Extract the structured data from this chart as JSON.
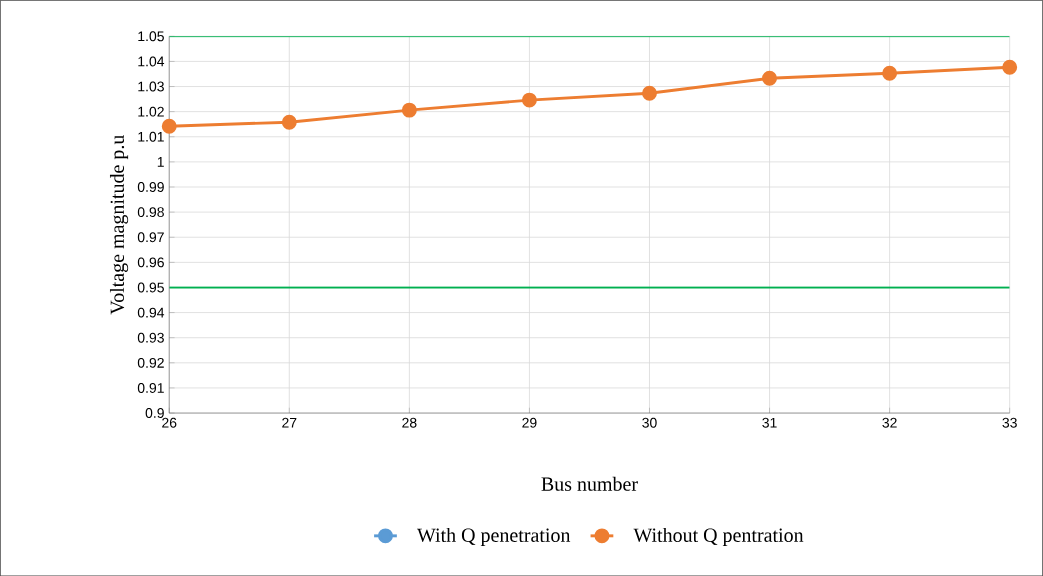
{
  "chart_data": {
    "type": "line",
    "xlabel": "Bus number",
    "ylabel": "Voltage magnitude p.u",
    "x": [
      26,
      27,
      28,
      29,
      30,
      31,
      32,
      33
    ],
    "series": [
      {
        "name": "With Q penetration",
        "color": "#5b9bd5",
        "values": [
          null,
          null,
          null,
          null,
          null,
          null,
          null,
          null
        ]
      },
      {
        "name": "Without Q pentration",
        "color": "#ed7d31",
        "values": [
          1.0142,
          1.0158,
          1.0206,
          1.0246,
          1.0273,
          1.0333,
          1.0353,
          1.0377
        ]
      }
    ],
    "xlim": [
      26,
      33
    ],
    "xticks": [
      26,
      27,
      28,
      29,
      30,
      31,
      32,
      33
    ],
    "ylim": [
      0.9,
      1.05
    ],
    "yticks": [
      0.9,
      0.91,
      0.92,
      0.93,
      0.94,
      0.95,
      0.96,
      0.97,
      0.98,
      0.99,
      1,
      1.01,
      1.02,
      1.03,
      1.04,
      1.05
    ],
    "ref_lines": [
      {
        "axis": "y",
        "value": 1.05,
        "color": "#00b050"
      },
      {
        "axis": "y",
        "value": 0.95,
        "color": "#00b050"
      }
    ],
    "grid": true,
    "legend": "bottom",
    "marker": "circle",
    "line_style": "solid"
  }
}
